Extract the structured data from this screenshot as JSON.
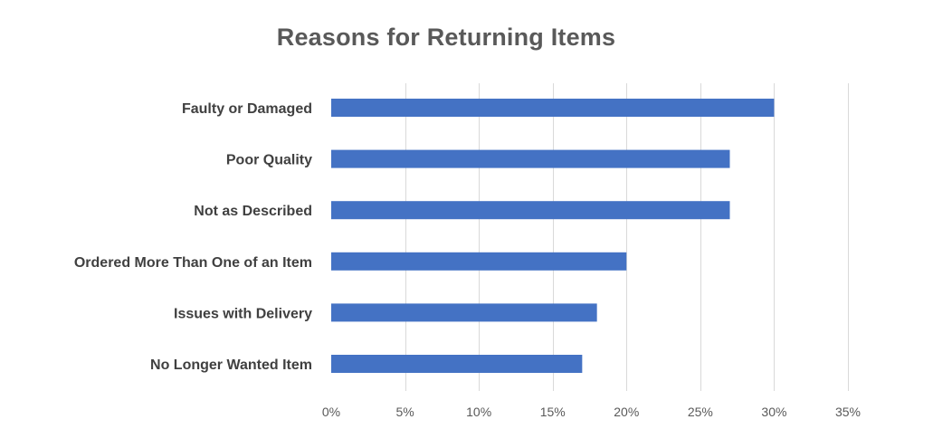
{
  "chart_data": {
    "type": "bar",
    "orientation": "horizontal",
    "title": "Reasons for Returning Items",
    "categories": [
      "Faulty or Damaged",
      "Poor Quality",
      "Not as Described",
      "Ordered More Than One of an Item",
      "Issues with Delivery",
      "No Longer Wanted Item"
    ],
    "values": [
      0.3,
      0.27,
      0.27,
      0.2,
      0.18,
      0.17
    ],
    "xlim": [
      0,
      0.35
    ],
    "xticks": [
      0,
      0.05,
      0.1,
      0.15,
      0.2,
      0.25,
      0.3,
      0.35
    ],
    "xtick_labels": [
      "0%",
      "5%",
      "10%",
      "15%",
      "20%",
      "25%",
      "30%",
      "35%"
    ],
    "grid": "vertical",
    "legend": "none",
    "colors": {
      "bar": "#4472c4",
      "grid": "#d9d9d9"
    }
  }
}
